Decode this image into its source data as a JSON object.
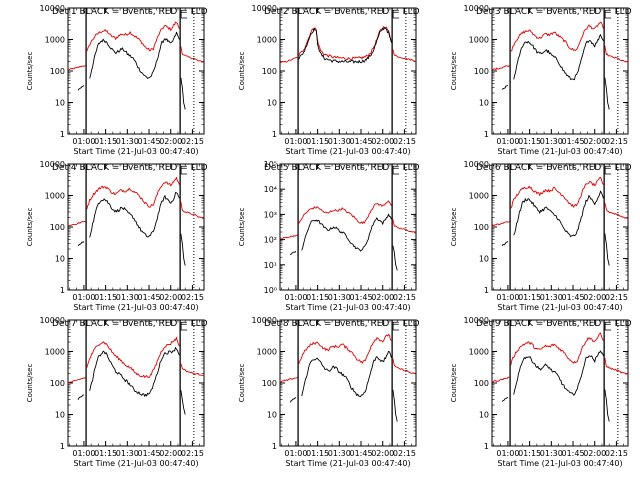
{
  "chart_data": {
    "type": "line",
    "layout": "3x3 grid",
    "shared": {
      "ylabel": "Counts/sec",
      "xlabel": "Start Time (21-Jul-03 00:47:40)",
      "x_ticks": [
        "01:00",
        "01:15",
        "01:30",
        "01:45",
        "02:00",
        "02:15"
      ],
      "x_tick_minutes": [
        60,
        75,
        90,
        105,
        120,
        135
      ],
      "xlim_minutes": [
        49,
        143
      ],
      "ylog": true,
      "ylim": [
        1,
        10000
      ],
      "vlines_solid_minutes": [
        61.5,
        126.5
      ],
      "vlines_dotted_minutes": [
        136
      ],
      "legend_text": "BLACK = Events, RED = LLD",
      "colors": {
        "events": "#000000",
        "lld": "#e00000",
        "axis": "#000000"
      },
      "series_names": [
        "Events",
        "LLD"
      ]
    },
    "panels": [
      {
        "title": "Det 1",
        "y_tick_labels": [
          "1",
          "10",
          "100",
          "1000",
          "10000"
        ],
        "y_tick_values": [
          1,
          10,
          100,
          1000,
          10000
        ],
        "shape": "standard",
        "lld_scale": 1.0,
        "ev_scale": 0.55
      },
      {
        "title": "Det 2",
        "y_tick_labels": [
          "1",
          "10",
          "100",
          "1000",
          "10000"
        ],
        "y_tick_values": [
          1,
          10,
          100,
          1000,
          10000
        ],
        "shape": "det2",
        "lld_scale": 1.0,
        "ev_scale": 1.0
      },
      {
        "title": "Det 3",
        "y_tick_labels": [
          "1",
          "10",
          "100",
          "1000",
          "10000"
        ],
        "y_tick_values": [
          1,
          10,
          100,
          1000,
          10000
        ],
        "shape": "standard",
        "lld_scale": 1.0,
        "ev_scale": 0.5
      },
      {
        "title": "Det 4",
        "y_tick_labels": [
          "1",
          "10",
          "100",
          "1000",
          "10000"
        ],
        "y_tick_values": [
          1,
          10,
          100,
          1000,
          10000
        ],
        "shape": "standard",
        "lld_scale": 1.0,
        "ev_scale": 0.45
      },
      {
        "title": "Det 5",
        "y_tick_labels": [
          "10⁰",
          "10¹",
          "10²",
          "10³",
          "10⁴",
          "10⁵"
        ],
        "y_tick_values": [
          1,
          10,
          100,
          1000,
          10000,
          100000
        ],
        "ylim": [
          1,
          100000
        ],
        "shape": "standard",
        "lld_scale": 1.0,
        "ev_scale": 0.35
      },
      {
        "title": "Det 6",
        "y_tick_labels": [
          "1",
          "10",
          "100",
          "1000",
          "10000"
        ],
        "y_tick_values": [
          1,
          10,
          100,
          1000,
          10000
        ],
        "shape": "standard",
        "lld_scale": 1.0,
        "ev_scale": 0.45
      },
      {
        "title": "Det 7",
        "y_tick_labels": [
          "1",
          "10",
          "100",
          "1000",
          "10000"
        ],
        "y_tick_values": [
          1,
          10,
          100,
          1000,
          10000
        ],
        "shape": "det7",
        "lld_scale": 1.0,
        "ev_scale": 0.6
      },
      {
        "title": "Det 8",
        "y_tick_labels": [
          "1",
          "10",
          "100",
          "1000",
          "10000"
        ],
        "y_tick_values": [
          1,
          10,
          100,
          1000,
          10000
        ],
        "shape": "standard",
        "lld_scale": 1.0,
        "ev_scale": 0.35
      },
      {
        "title": "Det 9",
        "y_tick_labels": [
          "1",
          "10",
          "100",
          "1000",
          "10000"
        ],
        "y_tick_values": [
          1,
          10,
          100,
          1000,
          10000
        ],
        "shape": "standard",
        "lld_scale": 1.0,
        "ev_scale": 0.4
      }
    ],
    "profiles": {
      "standard": {
        "lld_pre": [
          [
            49,
            110
          ],
          [
            55,
            125
          ],
          [
            58,
            140
          ],
          [
            61,
            150
          ]
        ],
        "lld_main": [
          [
            62,
            400
          ],
          [
            64,
            700
          ],
          [
            66,
            1000
          ],
          [
            68,
            1300
          ],
          [
            70,
            1600
          ],
          [
            72,
            1800
          ],
          [
            74,
            1900
          ],
          [
            76,
            1800
          ],
          [
            78,
            1400
          ],
          [
            80,
            1200
          ],
          [
            82,
            1100
          ],
          [
            84,
            1300
          ],
          [
            86,
            1500
          ],
          [
            88,
            1400
          ],
          [
            90,
            1500
          ],
          [
            92,
            1700
          ],
          [
            94,
            1400
          ],
          [
            96,
            1200
          ],
          [
            98,
            1000
          ],
          [
            100,
            800
          ],
          [
            102,
            600
          ],
          [
            104,
            500
          ],
          [
            106,
            450
          ],
          [
            108,
            520
          ],
          [
            110,
            900
          ],
          [
            112,
            1500
          ],
          [
            114,
            2200
          ],
          [
            116,
            2700
          ],
          [
            118,
            2400
          ],
          [
            120,
            2100
          ],
          [
            122,
            2800
          ],
          [
            124,
            3600
          ],
          [
            126,
            2200
          ]
        ],
        "lld_post": [
          [
            127,
            600
          ],
          [
            128,
            350
          ],
          [
            130,
            300
          ],
          [
            133,
            270
          ],
          [
            136,
            250
          ],
          [
            139,
            210
          ],
          [
            143,
            190
          ]
        ],
        "ev_main": [
          [
            64,
            60
          ],
          [
            66,
            150
          ],
          [
            68,
            350
          ],
          [
            70,
            700
          ],
          [
            72,
            900
          ],
          [
            74,
            950
          ],
          [
            76,
            800
          ],
          [
            78,
            600
          ],
          [
            80,
            450
          ],
          [
            82,
            380
          ],
          [
            84,
            420
          ],
          [
            86,
            500
          ],
          [
            88,
            450
          ],
          [
            90,
            350
          ],
          [
            92,
            300
          ],
          [
            94,
            250
          ],
          [
            96,
            180
          ],
          [
            98,
            120
          ],
          [
            100,
            90
          ],
          [
            102,
            70
          ],
          [
            104,
            60
          ],
          [
            106,
            65
          ],
          [
            108,
            90
          ],
          [
            110,
            180
          ],
          [
            112,
            400
          ],
          [
            114,
            800
          ],
          [
            116,
            1100
          ],
          [
            118,
            900
          ],
          [
            120,
            700
          ],
          [
            122,
            1000
          ],
          [
            124,
            1600
          ],
          [
            126,
            1000
          ]
        ],
        "ev_tail": [
          [
            127,
            60
          ],
          [
            128,
            30
          ],
          [
            129,
            10
          ],
          [
            130,
            6
          ]
        ],
        "ev_pre": [
          [
            56,
            25
          ],
          [
            58,
            30
          ],
          [
            60,
            35
          ]
        ]
      },
      "det2": {
        "lld_pre": [
          [
            49,
            180
          ],
          [
            55,
            210
          ],
          [
            58,
            240
          ],
          [
            61,
            270
          ]
        ],
        "lld_main": [
          [
            62,
            320
          ],
          [
            64,
            400
          ],
          [
            66,
            550
          ],
          [
            68,
            900
          ],
          [
            70,
            1600
          ],
          [
            72,
            2200
          ],
          [
            73,
            2400
          ],
          [
            74,
            2000
          ],
          [
            75,
            900
          ],
          [
            77,
            450
          ],
          [
            80,
            330
          ],
          [
            85,
            280
          ],
          [
            90,
            260
          ],
          [
            95,
            250
          ],
          [
            100,
            250
          ],
          [
            105,
            260
          ],
          [
            108,
            280
          ],
          [
            110,
            320
          ],
          [
            112,
            400
          ],
          [
            114,
            600
          ],
          [
            116,
            1000
          ],
          [
            118,
            1800
          ],
          [
            120,
            2400
          ],
          [
            122,
            2600
          ],
          [
            124,
            1800
          ],
          [
            126,
            900
          ]
        ],
        "lld_post": [
          [
            127,
            500
          ],
          [
            128,
            330
          ],
          [
            130,
            290
          ],
          [
            133,
            270
          ],
          [
            136,
            250
          ],
          [
            139,
            230
          ],
          [
            143,
            210
          ]
        ],
        "ev_main": [
          [
            62,
            250
          ],
          [
            64,
            320
          ],
          [
            66,
            450
          ],
          [
            68,
            800
          ],
          [
            70,
            1400
          ],
          [
            72,
            2000
          ],
          [
            73,
            2200
          ],
          [
            74,
            1800
          ],
          [
            75,
            750
          ],
          [
            77,
            350
          ],
          [
            80,
            250
          ],
          [
            85,
            210
          ],
          [
            90,
            200
          ],
          [
            95,
            195
          ],
          [
            100,
            195
          ],
          [
            105,
            200
          ],
          [
            108,
            220
          ],
          [
            110,
            260
          ],
          [
            112,
            330
          ],
          [
            114,
            500
          ],
          [
            116,
            900
          ],
          [
            118,
            1600
          ],
          [
            120,
            2200
          ],
          [
            122,
            2400
          ],
          [
            124,
            1600
          ],
          [
            126,
            800
          ]
        ],
        "ev_tail": [],
        "ev_pre": []
      },
      "det7": {
        "lld_pre": [
          [
            49,
            100
          ],
          [
            55,
            120
          ],
          [
            58,
            135
          ],
          [
            61,
            150
          ]
        ],
        "lld_main": [
          [
            62,
            300
          ],
          [
            64,
            600
          ],
          [
            66,
            900
          ],
          [
            68,
            1300
          ],
          [
            70,
            1700
          ],
          [
            72,
            1900
          ],
          [
            74,
            2000
          ],
          [
            76,
            1600
          ],
          [
            78,
            1200
          ],
          [
            80,
            900
          ],
          [
            82,
            700
          ],
          [
            84,
            600
          ],
          [
            86,
            500
          ],
          [
            88,
            400
          ],
          [
            90,
            350
          ],
          [
            92,
            300
          ],
          [
            94,
            250
          ],
          [
            96,
            200
          ],
          [
            98,
            180
          ],
          [
            100,
            170
          ],
          [
            102,
            160
          ],
          [
            104,
            160
          ],
          [
            106,
            170
          ],
          [
            108,
            250
          ],
          [
            110,
            400
          ],
          [
            112,
            700
          ],
          [
            114,
            1100
          ],
          [
            116,
            1500
          ],
          [
            118,
            1600
          ],
          [
            120,
            1800
          ],
          [
            122,
            2200
          ],
          [
            124,
            2600
          ],
          [
            126,
            1500
          ]
        ],
        "lld_post": [
          [
            127,
            400
          ],
          [
            128,
            300
          ],
          [
            130,
            250
          ],
          [
            133,
            220
          ],
          [
            136,
            200
          ],
          [
            139,
            190
          ],
          [
            143,
            180
          ]
        ],
        "ev_main": [
          [
            64,
            50
          ],
          [
            66,
            120
          ],
          [
            68,
            300
          ],
          [
            70,
            600
          ],
          [
            72,
            800
          ],
          [
            74,
            900
          ],
          [
            76,
            700
          ],
          [
            78,
            450
          ],
          [
            80,
            300
          ],
          [
            82,
            220
          ],
          [
            84,
            180
          ],
          [
            86,
            150
          ],
          [
            88,
            120
          ],
          [
            90,
            100
          ],
          [
            92,
            80
          ],
          [
            94,
            60
          ],
          [
            96,
            50
          ],
          [
            98,
            45
          ],
          [
            100,
            40
          ],
          [
            102,
            38
          ],
          [
            104,
            40
          ],
          [
            106,
            45
          ],
          [
            108,
            80
          ],
          [
            110,
            150
          ],
          [
            112,
            300
          ],
          [
            114,
            600
          ],
          [
            116,
            800
          ],
          [
            118,
            850
          ],
          [
            120,
            900
          ],
          [
            122,
            1000
          ],
          [
            124,
            1200
          ],
          [
            126,
            700
          ]
        ],
        "ev_tail": [
          [
            127,
            60
          ],
          [
            128,
            30
          ],
          [
            129,
            15
          ],
          [
            130,
            10
          ]
        ],
        "ev_pre": [
          [
            56,
            30
          ],
          [
            58,
            38
          ],
          [
            60,
            42
          ]
        ]
      }
    }
  }
}
